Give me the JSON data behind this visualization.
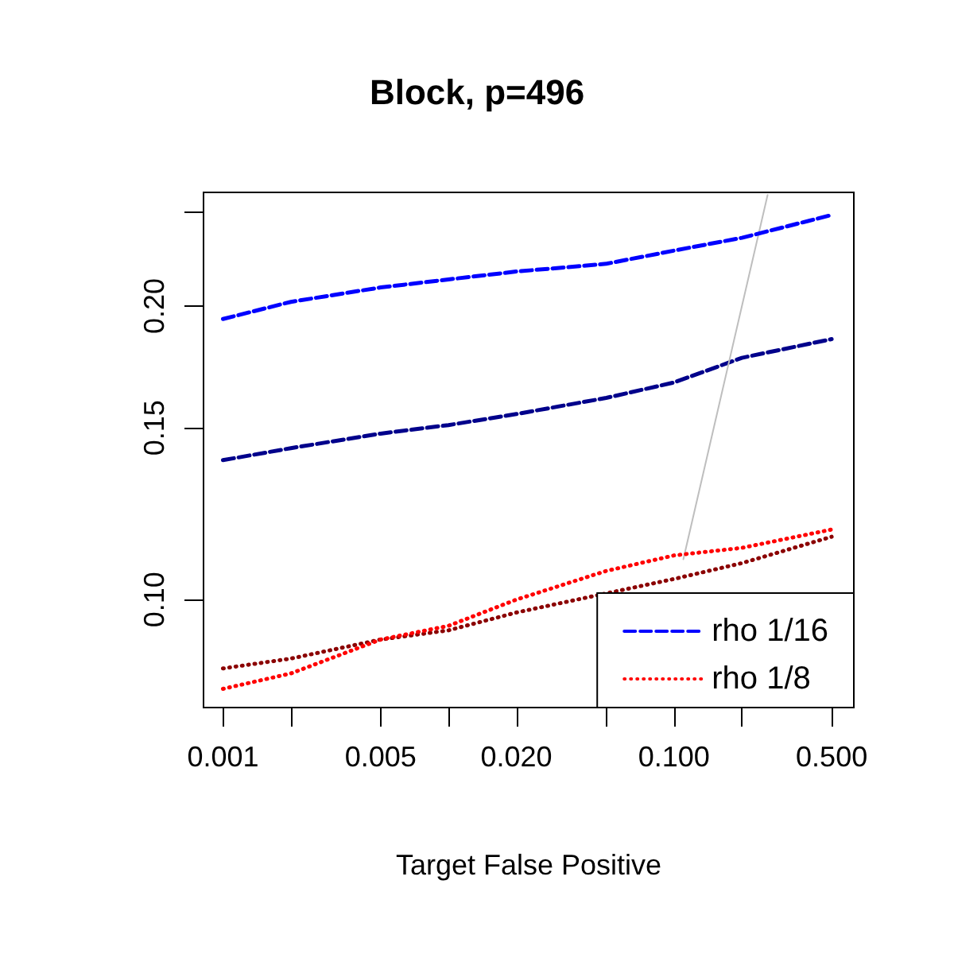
{
  "chart_data": {
    "type": "line",
    "title": "Block, p=496",
    "xlabel": "Target False Positive",
    "x": [
      0.001,
      0.002,
      0.005,
      0.01,
      0.02,
      0.05,
      0.1,
      0.2,
      0.5
    ],
    "series": [
      {
        "name": "rho 1/16",
        "color": "#0000ff",
        "line_style": "dashed",
        "values": [
          0.194,
          0.202,
          0.209,
          0.213,
          0.217,
          0.221,
          0.228,
          0.235,
          0.248
        ]
      },
      {
        "color": "#00008b",
        "line_style": "dashed",
        "values": [
          0.139,
          0.143,
          0.148,
          0.151,
          0.155,
          0.161,
          0.167,
          0.177,
          0.185
        ]
      },
      {
        "name": "rho 1/8",
        "color": "#ff0000",
        "line_style": "dotted",
        "values": [
          0.081,
          0.084,
          0.091,
          0.094,
          0.1,
          0.107,
          0.111,
          0.113,
          0.118
        ]
      },
      {
        "color": "#8b0000",
        "line_style": "dotted",
        "values": [
          0.085,
          0.087,
          0.091,
          0.093,
          0.097,
          null,
          0.105,
          0.109,
          0.116
        ]
      },
      {
        "color": "#bebebe",
        "line_style": "solid",
        "x": [
          0.11,
          0.26
        ],
        "values": [
          0.11,
          0.26
        ]
      }
    ],
    "log": "xy",
    "xlim": [
      0.00082,
      0.627
    ],
    "ylim": [
      0.0775,
      0.2616
    ],
    "xticks": [
      {
        "value": 0.001,
        "label": "0.001"
      },
      {
        "value": 0.002,
        "label": null
      },
      {
        "value": 0.005,
        "label": "0.005"
      },
      {
        "value": 0.01,
        "label": null
      },
      {
        "value": 0.02,
        "label": "0.020"
      },
      {
        "value": 0.05,
        "label": null
      },
      {
        "value": 0.1,
        "label": "0.100"
      },
      {
        "value": 0.2,
        "label": null
      },
      {
        "value": 0.5,
        "label": "0.500"
      }
    ],
    "yticks": [
      {
        "value": 0.1,
        "label": "0.10"
      },
      {
        "value": 0.15,
        "label": "0.15"
      },
      {
        "value": 0.2,
        "label": "0.20"
      },
      {
        "value": 0.25,
        "label": null
      }
    ],
    "grid": false,
    "legend": "bottom right",
    "marker": "none"
  }
}
